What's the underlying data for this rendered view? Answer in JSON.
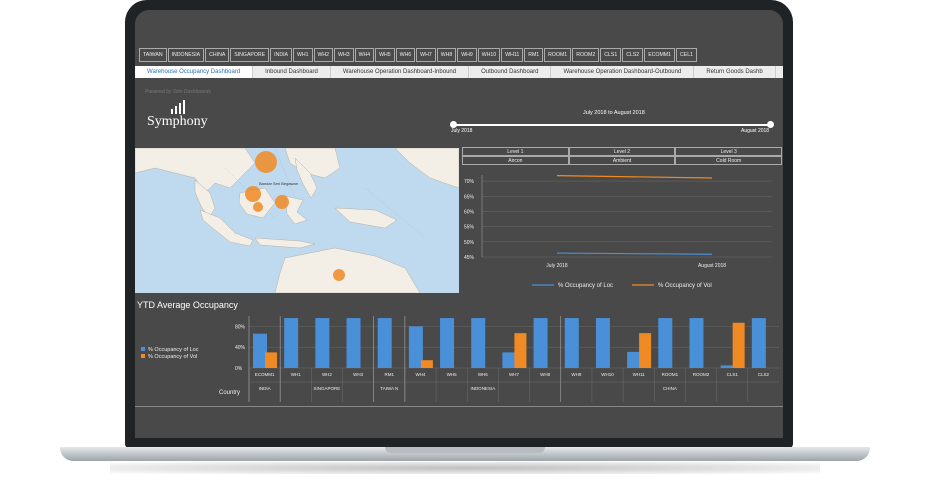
{
  "filters": [
    "TAIWAN",
    "INDONESIA",
    "CHINA",
    "SINGAPORE",
    "INDIA",
    "WH1",
    "WH2",
    "WH3",
    "WH4",
    "WH5",
    "WH6",
    "WH7",
    "WH8",
    "WH9",
    "WH10",
    "WH11",
    "RM1",
    "ROOM1",
    "ROOM2",
    "CLS1",
    "CLS2",
    "ECOMM1",
    "CEL1"
  ],
  "tabs": [
    {
      "label": "Warehouse Occupancy Dashboard",
      "active": true
    },
    {
      "label": "Inbound Dashboard"
    },
    {
      "label": "Warehouse Operation Dashboard-Inbound"
    },
    {
      "label": "Outbound Dashboard"
    },
    {
      "label": "Warehouse Operation Dashboard-Outbound"
    },
    {
      "label": "Return Goods Dashb"
    }
  ],
  "brand": {
    "powered_by": "Powered by Slim Dashboards",
    "name": "Symphony"
  },
  "date_range": {
    "title": "July 2018 to August 2018",
    "start": "July 2018",
    "end": "August 2018"
  },
  "levels": [
    "Level 1",
    "Level 2",
    "Level 3"
  ],
  "zones": [
    "Aircon",
    "Ambient",
    "Cold Room"
  ],
  "map_label": "Bandar Seri Begawan",
  "colors": {
    "loc": "#4a90d9",
    "vol": "#f08a24",
    "grid": "#6a6a6a"
  },
  "line_chart": {
    "type": "line",
    "categories": [
      "July 2018",
      "August 2018"
    ],
    "y_ticks": [
      "70%",
      "65%",
      "60%",
      "55%",
      "50%",
      "45%"
    ],
    "ylim": [
      45,
      72
    ],
    "series": [
      {
        "name": "% Occupancy of Loc",
        "values": [
          46.3,
          45.9
        ]
      },
      {
        "name": "% Occupancy of Vol",
        "values": [
          71.8,
          71.0
        ]
      }
    ]
  },
  "chart_data": {
    "type": "bar",
    "title": "YTD Average Occupancy",
    "xlabel": "Country",
    "y_ticks": [
      "80%",
      "40%",
      "0%"
    ],
    "ylim": [
      0,
      100
    ],
    "categories": [
      "ECOMM1",
      "WH1",
      "WH2",
      "WH3",
      "RM1",
      "WH4",
      "WH5",
      "WH6",
      "WH7",
      "WH8",
      "WH9",
      "WH10",
      "WH11",
      "ROOM1",
      "ROOM2",
      "CLS1",
      "CLS2"
    ],
    "groups": [
      {
        "label": "INDIA",
        "count": 1
      },
      {
        "label": "SINGAPORE",
        "count": 3
      },
      {
        "label": "TAIWA N",
        "count": 1
      },
      {
        "label": "INDONESIA",
        "count": 5
      },
      {
        "label": "CHINA",
        "count": 7
      }
    ],
    "series": [
      {
        "name": "% Occupancy of Loc",
        "values": [
          66,
          96,
          96,
          96,
          96,
          80,
          96,
          96,
          30,
          96,
          96,
          96,
          31,
          96,
          96,
          5,
          96
        ]
      },
      {
        "name": "% Occupancy of Vol",
        "values": [
          30,
          0,
          0,
          0,
          0,
          15,
          0,
          0,
          67,
          0,
          0,
          0,
          67,
          0,
          0,
          87,
          0
        ]
      }
    ]
  }
}
